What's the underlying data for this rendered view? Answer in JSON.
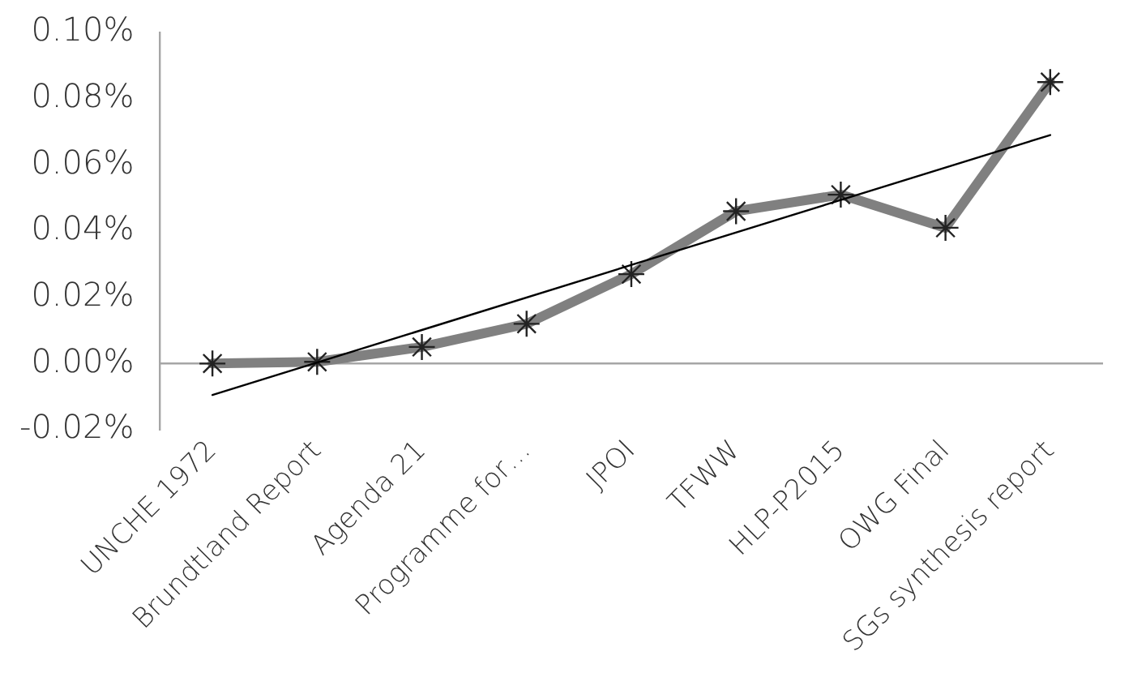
{
  "chart_data": {
    "type": "line",
    "categories": [
      "UNCHE 1972",
      "Brundtland Report",
      "Agenda 21",
      "Programme for…",
      "JPOI",
      "TFWW",
      "HLP-P2015",
      "OWG Final",
      "SGs synthesis report"
    ],
    "series": [
      {
        "color": "#808080",
        "values": [
          0,
          0.0005,
          0.005,
          0.012,
          0.027,
          0.046,
          0.051,
          0.041,
          0.085
        ],
        "marker": "cross"
      },
      {
        "type": "line",
        "color": "#000000",
        "x": [
          "UNCHE 1972",
          "SGs synthesis report"
        ],
        "values": [
          -0.0095,
          0.069
        ],
        "marker": "none"
      }
    ],
    "ylim": [
      -0.02,
      0.1
    ],
    "yticks": [
      {
        "value": -0.02,
        "label": "-0.02%"
      },
      {
        "value": 0,
        "label": "0.00%"
      },
      {
        "value": 0.02,
        "label": "0.02%"
      },
      {
        "value": 0.04,
        "label": "0.04%"
      },
      {
        "value": 0.06,
        "label": "0.06%"
      },
      {
        "value": 0.08,
        "label": "0.08%"
      },
      {
        "value": 0.1,
        "label": "0.10%"
      }
    ],
    "grid": false,
    "legend": false
  }
}
